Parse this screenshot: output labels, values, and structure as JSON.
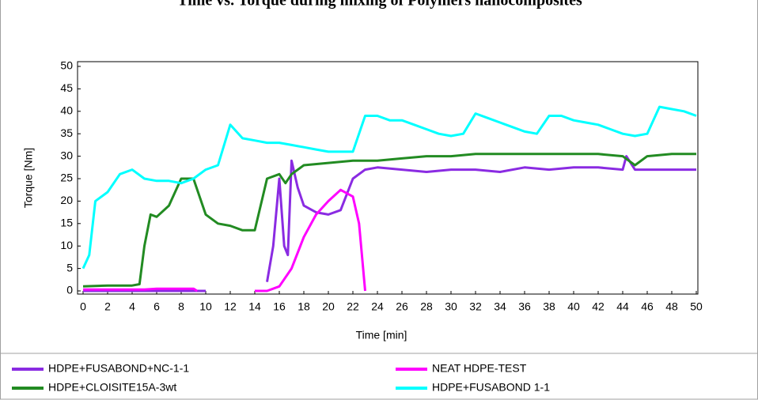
{
  "chart_data": {
    "type": "line",
    "title": "Time vs. Torque during mixing of Polymers nanocomposites",
    "x_label": "Time [min]",
    "y_label": "Torque [Nm]",
    "xlim": [
      0,
      50
    ],
    "ylim": [
      0,
      50
    ],
    "xticks": [
      0,
      2,
      4,
      6,
      8,
      10,
      12,
      14,
      16,
      18,
      20,
      22,
      24,
      26,
      28,
      30,
      32,
      34,
      36,
      38,
      40,
      42,
      44,
      46,
      48,
      50
    ],
    "yticks": [
      0,
      5,
      10,
      15,
      20,
      25,
      30,
      35,
      40,
      45,
      50
    ],
    "grid": false,
    "series": [
      {
        "name": "HDPE+FUSABOND+NC-1-1",
        "color": "#8a2be2",
        "x": [
          0,
          5,
          10,
          12,
          15,
          15.5,
          16,
          16.4,
          16.7,
          17,
          17.5,
          18,
          19,
          20,
          21,
          22,
          23,
          24,
          26,
          28,
          30,
          32,
          34,
          36,
          38,
          40,
          42,
          44,
          44.3,
          45,
          46,
          48,
          50
        ],
        "values": [
          0,
          0,
          0,
          null,
          2,
          10,
          25,
          10,
          8,
          29,
          23,
          19,
          17.5,
          17,
          18,
          25,
          27,
          27.5,
          27,
          26.5,
          27,
          27,
          26.5,
          27.5,
          27,
          27.5,
          27.5,
          27,
          30,
          27,
          27,
          27,
          27
        ]
      },
      {
        "name": "NEAT HDPE-TEST",
        "color": "#ff00ff",
        "x": [
          0,
          5,
          6,
          9,
          9.3,
          12,
          14,
          15,
          16,
          17,
          18,
          19,
          20,
          21,
          22,
          22.5,
          23
        ],
        "values": [
          0.3,
          0.3,
          0.5,
          0.5,
          0,
          null,
          0,
          0,
          1,
          5,
          12,
          17,
          20,
          22.5,
          21,
          15,
          0
        ]
      },
      {
        "name": "HDPE+CLOISITE15A-3wt",
        "color": "#228b22",
        "x": [
          0,
          2,
          4,
          4.6,
          5,
          5.5,
          6,
          7,
          8,
          9,
          10,
          11,
          12,
          13,
          14,
          15,
          16,
          16.5,
          17,
          18,
          20,
          22,
          24,
          26,
          28,
          30,
          32,
          34,
          36,
          38,
          40,
          42,
          44,
          45,
          46,
          48,
          50
        ],
        "values": [
          1,
          1.2,
          1.2,
          1.5,
          10,
          17,
          16.5,
          19,
          25,
          25,
          17,
          15,
          14.5,
          13.5,
          13.5,
          25,
          26,
          24,
          26,
          28,
          28.5,
          29,
          29,
          29.5,
          30,
          30,
          30.5,
          30.5,
          30.5,
          30.5,
          30.5,
          30.5,
          30,
          28,
          30,
          30.5,
          30.5
        ]
      },
      {
        "name": "HDPE+FUSABOND 1-1",
        "color": "#00ffff",
        "x": [
          0,
          0.5,
          1,
          2,
          3,
          4,
          5,
          6,
          7,
          8,
          9,
          10,
          11,
          12,
          13,
          14,
          15,
          16,
          17,
          18,
          19,
          20,
          21,
          22,
          23,
          24,
          25,
          26,
          27,
          28,
          29,
          30,
          31,
          32,
          33,
          34,
          35,
          36,
          37,
          38,
          39,
          40,
          41,
          42,
          43,
          44,
          45,
          46,
          47,
          48,
          49,
          50
        ],
        "values": [
          5,
          8,
          20,
          22,
          26,
          27,
          25,
          24.5,
          24.5,
          24,
          25,
          27,
          28,
          37,
          34,
          33.5,
          33,
          33,
          32.5,
          32,
          31.5,
          31,
          31,
          31,
          39,
          39,
          38,
          38,
          37,
          36,
          35,
          34.5,
          35,
          39.5,
          38.5,
          37.5,
          36.5,
          35.5,
          35,
          39,
          39,
          38,
          37.5,
          37,
          36,
          35,
          34.5,
          35,
          41,
          40.5,
          40,
          39
        ]
      }
    ]
  }
}
